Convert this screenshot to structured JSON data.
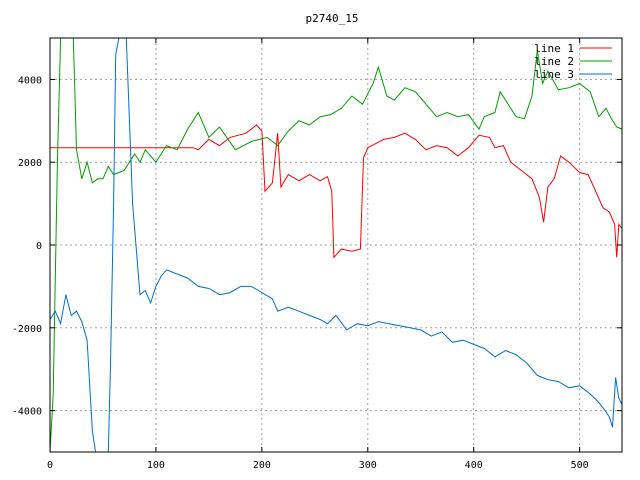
{
  "chart_data": {
    "type": "line",
    "title": "p2740_15",
    "xlabel": "",
    "ylabel": "",
    "xlim": [
      0,
      540
    ],
    "ylim": [
      -5000,
      5000
    ],
    "x_ticks": [
      0,
      100,
      200,
      300,
      400,
      500
    ],
    "y_ticks": [
      -4000,
      -2000,
      0,
      2000,
      4000
    ],
    "grid": true,
    "legend_position": "top-right",
    "series": [
      {
        "name": "line 1",
        "color": "#ff0000",
        "points": [
          [
            0,
            2350
          ],
          [
            135,
            2350
          ],
          [
            140,
            2300
          ],
          [
            150,
            2550
          ],
          [
            160,
            2400
          ],
          [
            170,
            2600
          ],
          [
            185,
            2700
          ],
          [
            195,
            2900
          ],
          [
            200,
            2750
          ],
          [
            203,
            1300
          ],
          [
            210,
            1500
          ],
          [
            215,
            2700
          ],
          [
            218,
            1400
          ],
          [
            225,
            1700
          ],
          [
            235,
            1550
          ],
          [
            245,
            1700
          ],
          [
            255,
            1550
          ],
          [
            262,
            1650
          ],
          [
            266,
            1300
          ],
          [
            268,
            -300
          ],
          [
            275,
            -100
          ],
          [
            285,
            -150
          ],
          [
            293,
            -100
          ],
          [
            296,
            2100
          ],
          [
            300,
            2350
          ],
          [
            315,
            2550
          ],
          [
            325,
            2600
          ],
          [
            335,
            2700
          ],
          [
            345,
            2550
          ],
          [
            355,
            2300
          ],
          [
            365,
            2400
          ],
          [
            375,
            2350
          ],
          [
            385,
            2150
          ],
          [
            395,
            2350
          ],
          [
            405,
            2650
          ],
          [
            415,
            2600
          ],
          [
            420,
            2350
          ],
          [
            428,
            2400
          ],
          [
            435,
            2000
          ],
          [
            445,
            1800
          ],
          [
            455,
            1600
          ],
          [
            462,
            1150
          ],
          [
            466,
            550
          ],
          [
            470,
            1400
          ],
          [
            476,
            1600
          ],
          [
            482,
            2150
          ],
          [
            490,
            2000
          ],
          [
            500,
            1750
          ],
          [
            508,
            1700
          ],
          [
            516,
            1250
          ],
          [
            522,
            900
          ],
          [
            528,
            800
          ],
          [
            533,
            500
          ],
          [
            535,
            -300
          ],
          [
            537,
            500
          ],
          [
            540,
            400
          ]
        ]
      },
      {
        "name": "line 2",
        "color": "#00a000",
        "points": [
          [
            0,
            -5000
          ],
          [
            3,
            -3600
          ],
          [
            7,
            2000
          ],
          [
            10,
            5000
          ],
          [
            22,
            5000
          ],
          [
            25,
            2300
          ],
          [
            30,
            1600
          ],
          [
            35,
            2000
          ],
          [
            40,
            1500
          ],
          [
            45,
            1600
          ],
          [
            50,
            1600
          ],
          [
            55,
            1900
          ],
          [
            60,
            1700
          ],
          [
            70,
            1800
          ],
          [
            80,
            2200
          ],
          [
            85,
            2000
          ],
          [
            90,
            2300
          ],
          [
            100,
            2000
          ],
          [
            110,
            2400
          ],
          [
            120,
            2300
          ],
          [
            130,
            2800
          ],
          [
            140,
            3200
          ],
          [
            150,
            2600
          ],
          [
            160,
            2850
          ],
          [
            175,
            2300
          ],
          [
            190,
            2500
          ],
          [
            205,
            2600
          ],
          [
            215,
            2400
          ],
          [
            225,
            2750
          ],
          [
            235,
            3000
          ],
          [
            245,
            2900
          ],
          [
            255,
            3100
          ],
          [
            265,
            3150
          ],
          [
            275,
            3300
          ],
          [
            285,
            3600
          ],
          [
            295,
            3400
          ],
          [
            305,
            3900
          ],
          [
            310,
            4300
          ],
          [
            318,
            3600
          ],
          [
            325,
            3500
          ],
          [
            335,
            3800
          ],
          [
            345,
            3700
          ],
          [
            355,
            3400
          ],
          [
            365,
            3100
          ],
          [
            375,
            3200
          ],
          [
            385,
            3100
          ],
          [
            395,
            3150
          ],
          [
            405,
            2800
          ],
          [
            410,
            3100
          ],
          [
            420,
            3200
          ],
          [
            425,
            3700
          ],
          [
            430,
            3500
          ],
          [
            440,
            3100
          ],
          [
            448,
            3050
          ],
          [
            455,
            3600
          ],
          [
            460,
            4700
          ],
          [
            465,
            3900
          ],
          [
            470,
            4200
          ],
          [
            480,
            3750
          ],
          [
            490,
            3800
          ],
          [
            500,
            3900
          ],
          [
            510,
            3700
          ],
          [
            518,
            3100
          ],
          [
            525,
            3300
          ],
          [
            530,
            3050
          ],
          [
            535,
            2850
          ],
          [
            540,
            2800
          ]
        ]
      },
      {
        "name": "line 3",
        "color": "#0070d0",
        "points": [
          [
            0,
            -1800
          ],
          [
            5,
            -1600
          ],
          [
            10,
            -1900
          ],
          [
            15,
            -1200
          ],
          [
            20,
            -1700
          ],
          [
            25,
            -1600
          ],
          [
            30,
            -1850
          ],
          [
            35,
            -2300
          ],
          [
            40,
            -4500
          ],
          [
            43,
            -5000
          ],
          [
            55,
            -5000
          ],
          [
            57,
            -3000
          ],
          [
            60,
            1000
          ],
          [
            62,
            4600
          ],
          [
            65,
            5000
          ],
          [
            72,
            5000
          ],
          [
            78,
            1000
          ],
          [
            85,
            -1200
          ],
          [
            90,
            -1100
          ],
          [
            95,
            -1400
          ],
          [
            100,
            -1000
          ],
          [
            105,
            -750
          ],
          [
            110,
            -600
          ],
          [
            120,
            -700
          ],
          [
            130,
            -800
          ],
          [
            140,
            -1000
          ],
          [
            150,
            -1050
          ],
          [
            160,
            -1200
          ],
          [
            170,
            -1150
          ],
          [
            180,
            -1000
          ],
          [
            190,
            -1000
          ],
          [
            200,
            -1150
          ],
          [
            210,
            -1300
          ],
          [
            215,
            -1600
          ],
          [
            225,
            -1500
          ],
          [
            235,
            -1600
          ],
          [
            245,
            -1700
          ],
          [
            255,
            -1800
          ],
          [
            262,
            -1900
          ],
          [
            270,
            -1700
          ],
          [
            280,
            -2050
          ],
          [
            290,
            -1900
          ],
          [
            300,
            -1950
          ],
          [
            310,
            -1850
          ],
          [
            320,
            -1900
          ],
          [
            330,
            -1950
          ],
          [
            340,
            -2000
          ],
          [
            350,
            -2050
          ],
          [
            360,
            -2200
          ],
          [
            370,
            -2100
          ],
          [
            380,
            -2350
          ],
          [
            390,
            -2300
          ],
          [
            400,
            -2400
          ],
          [
            410,
            -2500
          ],
          [
            420,
            -2700
          ],
          [
            430,
            -2550
          ],
          [
            440,
            -2650
          ],
          [
            450,
            -2850
          ],
          [
            460,
            -3150
          ],
          [
            470,
            -3250
          ],
          [
            480,
            -3300
          ],
          [
            490,
            -3450
          ],
          [
            500,
            -3400
          ],
          [
            510,
            -3600
          ],
          [
            518,
            -3800
          ],
          [
            524,
            -4000
          ],
          [
            528,
            -4150
          ],
          [
            531,
            -4400
          ],
          [
            534,
            -3200
          ],
          [
            537,
            -3700
          ],
          [
            540,
            -3850
          ]
        ]
      }
    ]
  }
}
